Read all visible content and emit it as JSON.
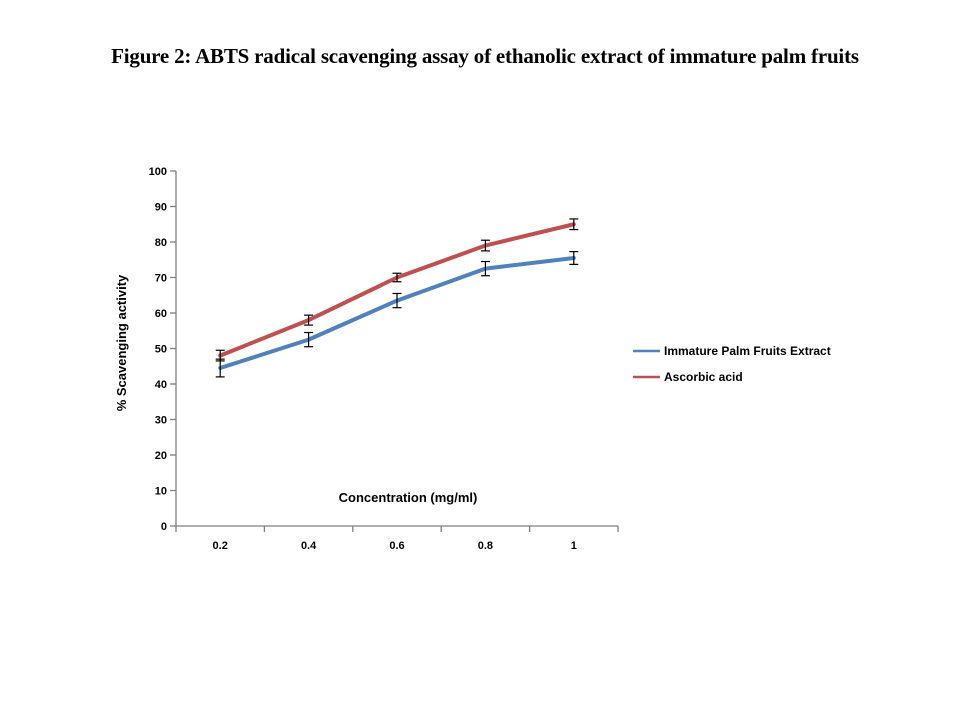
{
  "page": {
    "background": "#ffffff"
  },
  "title": {
    "text": "Figure 2: ABTS radical scavenging assay of ethanolic extract of immature palm fruits"
  },
  "chart_data": {
    "type": "line",
    "title": "",
    "xlabel": "Concentration (mg/ml)",
    "ylabel": "% Scavenging activity",
    "categories": [
      0.2,
      0.4,
      0.6,
      0.8,
      1
    ],
    "x_tick_labels": [
      "0.2",
      "0.4",
      "0.6",
      "0.8",
      "1"
    ],
    "ylim": [
      0,
      100
    ],
    "y_tick_step": 10,
    "grid": false,
    "legend_position": "right",
    "series": [
      {
        "name": "Immature Palm Fruits Extract",
        "color": "#4F81BD",
        "values": [
          44.5,
          52.5,
          63.5,
          72.5,
          75.5
        ],
        "error": [
          2.5,
          2,
          2,
          2,
          1.8
        ]
      },
      {
        "name": "Ascorbic acid",
        "color": "#C0504D",
        "values": [
          48,
          58,
          70,
          79,
          85
        ],
        "error": [
          1.5,
          1.4,
          1.2,
          1.5,
          1.5
        ]
      }
    ],
    "error_bar_color": "#000000",
    "axis_color": "#7F7F7F"
  }
}
